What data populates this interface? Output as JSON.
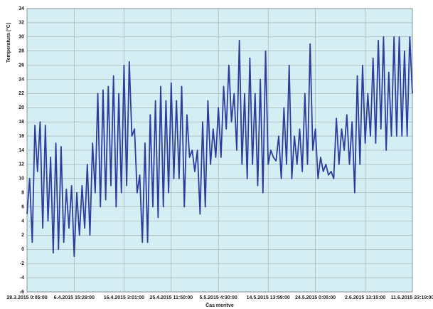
{
  "chart_data": {
    "type": "line",
    "y_label": "Temperatura (°C)",
    "x_label": "Čas meritve",
    "series": [
      {
        "name": "Temperatura",
        "color": "#2f3c9e",
        "values": [
          5,
          10,
          1,
          17.5,
          11,
          18,
          3,
          17.5,
          4,
          13,
          -0.5,
          15,
          0,
          14.5,
          1,
          8.5,
          3,
          9,
          -1,
          8,
          2,
          9,
          3,
          12,
          2,
          15,
          8,
          22,
          6,
          22.5,
          7,
          23,
          9,
          24.5,
          6,
          22,
          8,
          26,
          9,
          26.5,
          16,
          17,
          8,
          10.5,
          1,
          15,
          1,
          19,
          6,
          21,
          4.5,
          23,
          6,
          21,
          8,
          23.5,
          10,
          21,
          10,
          23,
          6,
          19,
          13,
          14,
          11,
          14,
          5,
          18,
          6,
          21,
          12,
          17,
          13,
          20,
          13,
          23,
          17,
          26,
          18,
          22,
          14,
          29.5,
          12,
          22,
          10,
          27,
          12,
          22,
          9,
          24,
          8,
          28,
          12,
          14,
          13,
          12.5,
          16,
          10,
          20,
          12,
          26,
          10,
          16,
          12,
          17,
          11,
          22,
          12,
          29,
          14,
          17,
          10,
          13,
          11,
          12,
          10.5,
          11,
          10,
          18.5,
          12,
          17,
          14,
          19,
          12,
          18,
          8,
          24.5,
          12,
          26,
          15,
          22,
          16,
          27,
          15,
          29.5,
          17,
          30,
          14,
          25,
          16,
          30,
          16,
          30,
          16,
          28,
          16,
          30,
          22
        ]
      }
    ],
    "xlim": [
      0,
      147
    ],
    "xticks": [
      {
        "value": 0,
        "label": "28.3.2015 0:05:00"
      },
      {
        "value": 18,
        "label": "6.4.2015 15:29:00"
      },
      {
        "value": 37,
        "label": "16.4.2015 3:01:00"
      },
      {
        "value": 55,
        "label": "25.4.2015 11:50:00"
      },
      {
        "value": 73,
        "label": "5.5.2015 4:30:00"
      },
      {
        "value": 92,
        "label": "14.5.2015 13:59:00"
      },
      {
        "value": 110,
        "label": "24.5.2015 0:05:00"
      },
      {
        "value": 129,
        "label": "2.6.2015 13:15:00"
      },
      {
        "value": 147,
        "label": "11.6.2015 23:19:00"
      }
    ],
    "ylim": [
      -6,
      34
    ],
    "yticks": [
      -6,
      -4,
      -2,
      0,
      2,
      4,
      6,
      8,
      10,
      12,
      14,
      16,
      18,
      20,
      22,
      24,
      26,
      28,
      30,
      32,
      34
    ],
    "grid": true
  }
}
